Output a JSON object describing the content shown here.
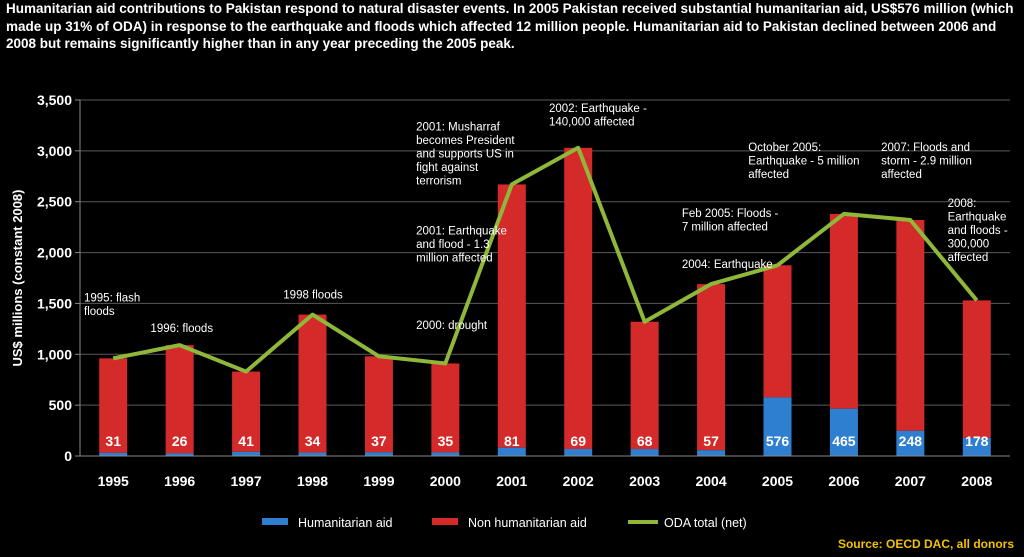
{
  "headline": "Humanitarian aid contributions to Pakistan respond to natural disaster events. In 2005 Pakistan received substantial humanitarian aid, US$576 million (which made up 31% of ODA) in response to the earthquake and floods which affected 12 million people.  Humanitarian aid to Pakistan declined between 2006 and 2008 but remains significantly higher than in any year preceding the 2005 peak.",
  "source": "Source: OECD DAC, all donors",
  "colors": {
    "humanitarian": "#2f7fd0",
    "non_humanitarian": "#d42a2a",
    "oda_line": "#8fb83a",
    "text": "#ffffff"
  },
  "chart_data": {
    "type": "bar",
    "stacked": true,
    "categories": [
      "1995",
      "1996",
      "1997",
      "1998",
      "1999",
      "2000",
      "2001",
      "2002",
      "2003",
      "2004",
      "2005",
      "2006",
      "2007",
      "2008"
    ],
    "ylabel": "US$ millions (constant  2008)",
    "xlabel": "",
    "ylim": [
      0,
      3500
    ],
    "yticks": [
      0,
      500,
      1000,
      1500,
      2000,
      2500,
      3000,
      3500
    ],
    "ytick_labels": [
      "0",
      "500",
      "1,000",
      "1,500",
      "2,000",
      "2,500",
      "3,000",
      "3,500"
    ],
    "legend_position": "bottom",
    "series": [
      {
        "name": "Humanitarian aid",
        "kind": "bar",
        "values": [
          31,
          26,
          41,
          34,
          37,
          35,
          81,
          69,
          68,
          57,
          576,
          465,
          248,
          178
        ]
      },
      {
        "name": "Non humanitarian aid",
        "kind": "bar",
        "values": [
          929,
          1064,
          789,
          1356,
          943,
          875,
          2589,
          2961,
          1252,
          1633,
          1299,
          1915,
          2072,
          1352
        ]
      },
      {
        "name": "ODA total (net)",
        "kind": "line",
        "values": [
          960,
          1090,
          830,
          1390,
          980,
          910,
          2670,
          3030,
          1320,
          1690,
          1875,
          2380,
          2320,
          1530
        ]
      }
    ],
    "bar_labels": [
      "31",
      "26",
      "41",
      "34",
      "37",
      "35",
      "81",
      "69",
      "68",
      "57",
      "576",
      "465",
      "248",
      "178"
    ],
    "annotations": [
      {
        "text": [
          "1995: flash",
          "floods"
        ],
        "x": "1995",
        "y": 1520
      },
      {
        "text": [
          "1996: floods"
        ],
        "x": "1996",
        "y": 1220
      },
      {
        "text": [
          "1998 floods"
        ],
        "x": "1998",
        "y": 1550
      },
      {
        "text": [
          "2000: drought"
        ],
        "x": "2000",
        "y": 1250
      },
      {
        "text": [
          "2001: Earthquake",
          "and flood - 1.3",
          "million affected"
        ],
        "x": "2000",
        "y": 2180
      },
      {
        "text": [
          "2001: Musharraf",
          "becomes President",
          "and supports US in",
          "fight against",
          "terrorism"
        ],
        "x": "2000",
        "y": 3200
      },
      {
        "text": [
          "2002: Earthquake -",
          "140,000 affected"
        ],
        "x": "2002",
        "y": 3380
      },
      {
        "text": [
          "2004: Earthquake"
        ],
        "x": "2004",
        "y": 1850
      },
      {
        "text": [
          "Feb 2005: Floods -",
          "7 million affected"
        ],
        "x": "2004",
        "y": 2350
      },
      {
        "text": [
          "October 2005:",
          "Earthquake - 5 million",
          "affected"
        ],
        "x": "2005",
        "y": 3000
      },
      {
        "text": [
          "2007: Floods and",
          "storm - 2.9 million",
          "affected"
        ],
        "x": "2007",
        "y": 3000
      },
      {
        "text": [
          "2008:",
          "Earthquake",
          "and floods -",
          "300,000",
          "affected"
        ],
        "x": "2008",
        "y": 2450
      }
    ]
  }
}
